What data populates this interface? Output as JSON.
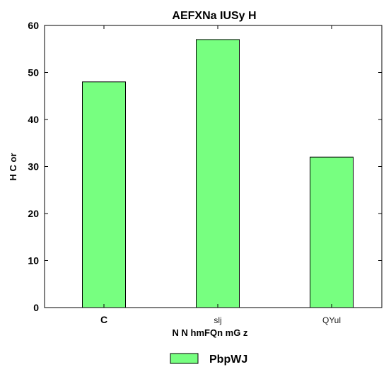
{
  "chart_data": {
    "type": "bar",
    "title": "AEFXNa IUSy H",
    "xlabel": "N N hmFQn mG z",
    "ylabel": "H C  or",
    "categories": [
      "C",
      "slj",
      "QYul"
    ],
    "series": [
      {
        "name": "PbpWJ",
        "values": [
          48,
          57,
          32
        ]
      }
    ],
    "ylim": [
      0,
      60
    ],
    "yticks": [
      0,
      10,
      20,
      30,
      40,
      50,
      60
    ],
    "grid": false,
    "legend_position": "bottom-center",
    "bar_color": "#77ff80",
    "edge_color": "#000000"
  }
}
